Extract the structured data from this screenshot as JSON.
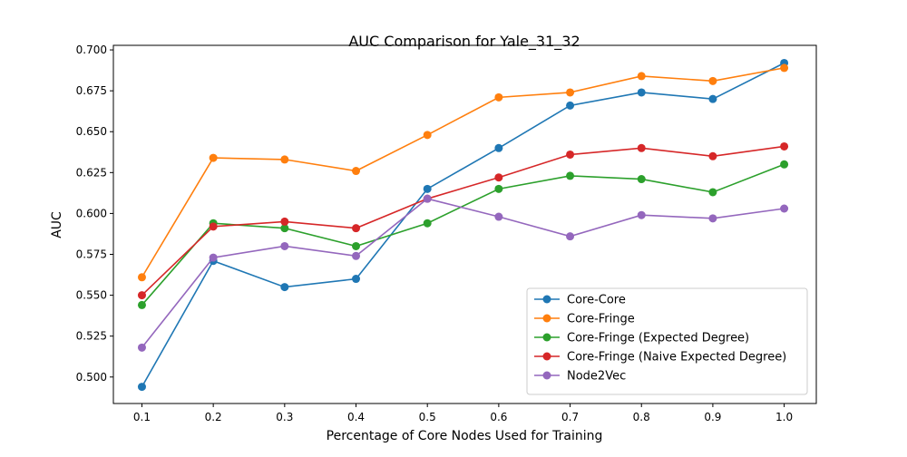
{
  "chart_data": {
    "type": "line",
    "title": "AUC Comparison for Yale_31_32",
    "xlabel": "Percentage of Core Nodes Used for Training",
    "ylabel": "AUC",
    "x": [
      0.1,
      0.2,
      0.3,
      0.4,
      0.5,
      0.6,
      0.7,
      0.8,
      0.9,
      1.0
    ],
    "xlim": [
      0.06,
      1.045
    ],
    "ylim": [
      0.4838,
      0.7028
    ],
    "xticks": [
      0.1,
      0.2,
      0.3,
      0.4,
      0.5,
      0.6,
      0.7,
      0.8,
      0.9,
      1.0
    ],
    "xtick_labels": [
      "0.1",
      "0.2",
      "0.3",
      "0.4",
      "0.5",
      "0.6",
      "0.7",
      "0.8",
      "0.9",
      "1.0"
    ],
    "yticks": [
      0.5,
      0.525,
      0.55,
      0.575,
      0.6,
      0.625,
      0.65,
      0.675,
      0.7
    ],
    "ytick_labels": [
      "0.500",
      "0.525",
      "0.550",
      "0.575",
      "0.600",
      "0.625",
      "0.650",
      "0.675",
      "0.700"
    ],
    "grid": false,
    "legend_position": "lower-right",
    "series": [
      {
        "name": "Core-Core",
        "color": "#1f77b4",
        "values": [
          0.494,
          0.571,
          0.555,
          0.56,
          0.615,
          0.64,
          0.666,
          0.674,
          0.67,
          0.692
        ]
      },
      {
        "name": "Core-Fringe",
        "color": "#ff7f0e",
        "values": [
          0.561,
          0.634,
          0.633,
          0.626,
          0.648,
          0.671,
          0.674,
          0.684,
          0.681,
          0.689
        ]
      },
      {
        "name": "Core-Fringe (Expected Degree)",
        "color": "#2ca02c",
        "values": [
          0.544,
          0.594,
          0.591,
          0.58,
          0.594,
          0.615,
          0.623,
          0.621,
          0.613,
          0.63
        ]
      },
      {
        "name": "Core-Fringe (Naive Expected Degree)",
        "color": "#d62728",
        "values": [
          0.55,
          0.592,
          0.595,
          0.591,
          0.609,
          0.622,
          0.636,
          0.64,
          0.635,
          0.641
        ]
      },
      {
        "name": "Node2Vec",
        "color": "#9467bd",
        "values": [
          0.518,
          0.573,
          0.58,
          0.574,
          0.609,
          0.598,
          0.586,
          0.599,
          0.597,
          0.603
        ]
      }
    ]
  }
}
